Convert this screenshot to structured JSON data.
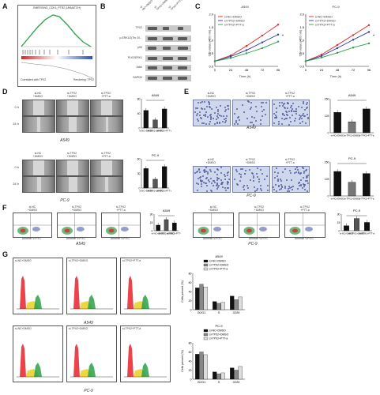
{
  "panels": {
    "A": {
      "letter": "A",
      "title": "EMERGING_CDK4_PTR2 (UNMATCH)",
      "left_label": "Correlated with TPX2",
      "right_label": "Rendering: TPX2"
    },
    "B": {
      "letter": "B",
      "lane_headers": [
        "si-NC+DMSO",
        "si-TPX2+DMSO",
        "si-TPX2+PTT-a"
      ],
      "rows": [
        "TPX2",
        "p-ERK1/2(Thr 20...",
        "p53",
        "PLK2/ERK1",
        "Actin",
        "GAPDH"
      ]
    },
    "C": {
      "letter": "C",
      "left": {
        "title": "A549",
        "xlabel": "Time (h)",
        "ylabel": "OD value (450 nm)",
        "legend": [
          "si-NC+DMSO",
          "si-TPX2+DMSO",
          "si-TPX2+PTT-a"
        ]
      },
      "right": {
        "title": "PC-9",
        "xlabel": "Time (h)",
        "ylabel": "OD value (450 nm)",
        "legend": [
          "si-NC+DMSO",
          "si-TPX2+DMSO",
          "si-TPX2+PTT-a"
        ]
      }
    },
    "D": {
      "letter": "D",
      "top": {
        "cols": [
          "si-NC\n+DMSO",
          "si-TPX2\n+DMSO",
          "si-TPX2\n+PTT-a"
        ],
        "rows": [
          "0 h",
          "24 h"
        ],
        "caption": "A549",
        "chart_title": "A549",
        "ylabel": "Healing percent (%)"
      },
      "bottom": {
        "cols": [
          "si-NC\n+DMSO",
          "si-TPX2\n+DMSO",
          "si-TPX2\n+PTT-a"
        ],
        "rows": [
          "0 h",
          "24 h"
        ],
        "caption": "PC-9",
        "chart_title": "PC-9",
        "ylabel": "Healing percent (%)"
      }
    },
    "E": {
      "letter": "E",
      "top": {
        "cols": [
          "si-NC\n+DMSO",
          "si-TPX2\n+DMSO",
          "si-TPX2\n+PTT-a"
        ],
        "caption": "A549",
        "chart_title": "A549",
        "ylabel": "Invasion cell number"
      },
      "bottom": {
        "cols": [
          "si-NC\n+DMSO",
          "si-TPX2\n+DMSO",
          "si-TPX2\n+PTT-a"
        ],
        "caption": "PC-9",
        "chart_title": "PC-9",
        "ylabel": "Invasion cell number"
      }
    },
    "F": {
      "letter": "F",
      "left_caption": "A549",
      "right_caption": "PC-9",
      "cols": [
        "si-NC\n+DMSO",
        "si-TPX2\n+DMSO",
        "si-TPX2\n+PTT-a"
      ],
      "axis": "Annexin V-FITC",
      "chart_ylabel": "Apoptosis rate (%)"
    },
    "G": {
      "letter": "G",
      "top": {
        "cols": [
          "si-NC+DMSO",
          "si-TPX2+DMSO",
          "si-TPX2+PTT-a"
        ],
        "caption": "A549",
        "chart_title": "A549",
        "ylabel": "Cells percent (%)"
      },
      "bottom": {
        "cols": [
          "si-NC+DMSO",
          "si-TPX2+DMSO",
          "si-TPX2+PTT-a"
        ],
        "caption": "PC-9",
        "chart_title": "PC-9",
        "ylabel": "Cells percent (%)"
      },
      "legend": [
        "si-NC+DMSO",
        "si-TPX2+DMSO",
        "si-TPX2+PTT-a"
      ],
      "categories": [
        "G0/G1",
        "S",
        "G2/M"
      ]
    }
  },
  "chart_data": [
    {
      "type": "line",
      "id": "C-A549",
      "title": "A549",
      "x": [
        0,
        24,
        48,
        72,
        96
      ],
      "series": [
        {
          "name": "si-NC+DMSO",
          "color": "#e8222a",
          "values": [
            0.2,
            0.42,
            0.78,
            1.18,
            1.6
          ]
        },
        {
          "name": "si-TPX2+DMSO",
          "color": "#2b3aa0",
          "values": [
            0.2,
            0.38,
            0.62,
            0.92,
            1.22
          ]
        },
        {
          "name": "si-TPX2+PTT-a",
          "color": "#2aa048",
          "values": [
            0.2,
            0.32,
            0.5,
            0.7,
            0.95
          ]
        }
      ],
      "ylim": [
        0,
        2.0
      ]
    },
    {
      "type": "line",
      "id": "C-PC9",
      "title": "PC-9",
      "x": [
        0,
        24,
        48,
        72,
        96
      ],
      "series": [
        {
          "name": "si-NC+DMSO",
          "color": "#e8222a",
          "values": [
            0.2,
            0.45,
            0.82,
            1.2,
            1.58
          ]
        },
        {
          "name": "si-TPX2+DMSO",
          "color": "#2b3aa0",
          "values": [
            0.2,
            0.4,
            0.7,
            1.02,
            1.32
          ]
        },
        {
          "name": "si-TPX2+PTT-a",
          "color": "#2aa048",
          "values": [
            0.2,
            0.34,
            0.52,
            0.72,
            0.88
          ]
        }
      ],
      "ylim": [
        0,
        2.0
      ]
    },
    {
      "type": "bar",
      "id": "D-A549",
      "title": "A549",
      "categories": [
        "si-NC+DMSO",
        "si-TPX2+DMSO",
        "si-TPX2+PTT-a"
      ],
      "values": [
        48,
        22,
        52
      ],
      "ylim": [
        0,
        80
      ]
    },
    {
      "type": "bar",
      "id": "D-PC9",
      "title": "PC-9",
      "categories": [
        "si-NC+DMSO",
        "si-TPX2+DMSO",
        "si-TPX2+PTT-a"
      ],
      "values": [
        40,
        18,
        44
      ],
      "ylim": [
        0,
        60
      ]
    },
    {
      "type": "bar",
      "id": "E-A549",
      "title": "A549",
      "categories": [
        "si-NC+DMSO",
        "si-TPX2+DMSO",
        "si-TPX2+PTT-a"
      ],
      "values": [
        150,
        80,
        175
      ],
      "ylim": [
        0,
        250
      ]
    },
    {
      "type": "bar",
      "id": "E-PC9",
      "title": "PC-9",
      "categories": [
        "si-NC+DMSO",
        "si-TPX2+DMSO",
        "si-TPX2+PTT-a"
      ],
      "values": [
        180,
        100,
        165
      ],
      "ylim": [
        0,
        250
      ]
    },
    {
      "type": "bar",
      "id": "F-A549",
      "title": "A549",
      "categories": [
        "si-NC+DMSO",
        "si-TPX2+DMSO",
        "si-TPX2+PTT-a"
      ],
      "values": [
        10,
        20,
        14
      ],
      "ylim": [
        0,
        30
      ]
    },
    {
      "type": "bar",
      "id": "F-PC9",
      "title": "PC-9",
      "categories": [
        "si-NC+DMSO",
        "si-TPX2+DMSO",
        "si-TPX2+PTT-a"
      ],
      "values": [
        9,
        22,
        15
      ],
      "ylim": [
        0,
        30
      ]
    },
    {
      "type": "bar",
      "id": "G-A549",
      "title": "A549",
      "categories": [
        "G0/G1",
        "S",
        "G2/M"
      ],
      "series": [
        {
          "name": "si-NC+DMSO",
          "color": "#111111",
          "values": [
            48,
            18,
            30
          ]
        },
        {
          "name": "si-TPX2+DMSO",
          "color": "#888888",
          "values": [
            56,
            14,
            22
          ]
        },
        {
          "name": "si-TPX2+PTT-a",
          "color": "#dddddd",
          "values": [
            50,
            16,
            28
          ]
        }
      ],
      "ylim": [
        0,
        80
      ]
    },
    {
      "type": "bar",
      "id": "G-PC9",
      "title": "PC-9",
      "categories": [
        "G0/G1",
        "S",
        "G2/M"
      ],
      "series": [
        {
          "name": "si-NC+DMSO",
          "color": "#111111",
          "values": [
            55,
            16,
            25
          ]
        },
        {
          "name": "si-TPX2+DMSO",
          "color": "#888888",
          "values": [
            60,
            12,
            20
          ]
        },
        {
          "name": "si-TPX2+PTT-a",
          "color": "#dddddd",
          "values": [
            54,
            14,
            28
          ]
        }
      ],
      "ylim": [
        0,
        80
      ]
    }
  ]
}
